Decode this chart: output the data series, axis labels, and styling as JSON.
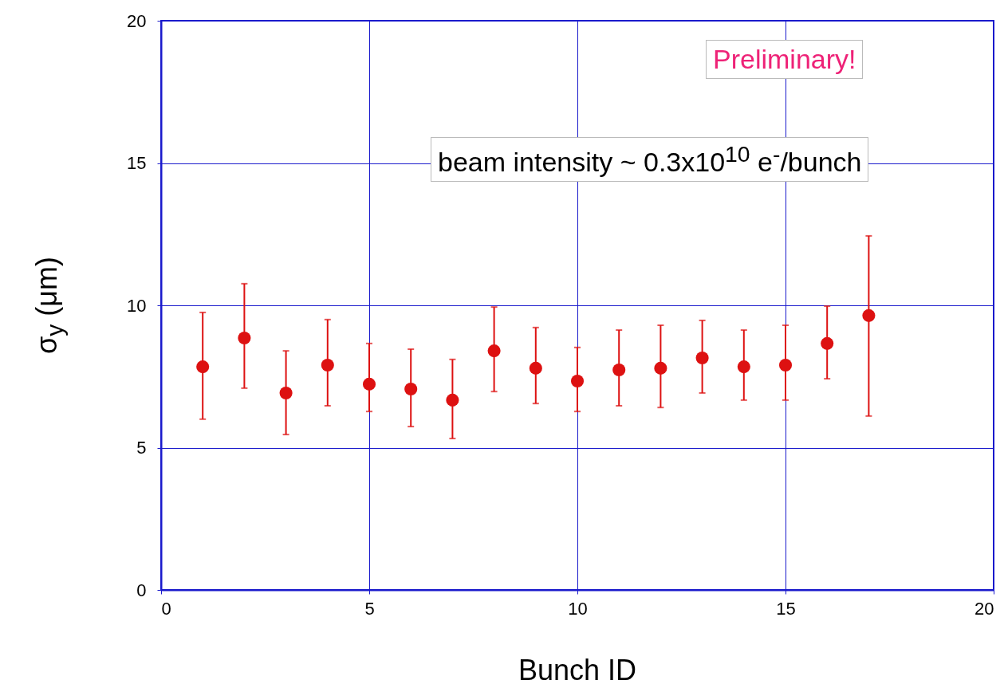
{
  "chart_data": {
    "type": "scatter",
    "xlabel": "Bunch ID",
    "ylabel": "σ$_{y}$ (μm)",
    "x": [
      1,
      2,
      3,
      4,
      5,
      6,
      7,
      8,
      9,
      10,
      11,
      12,
      13,
      14,
      15,
      16,
      17
    ],
    "values": [
      7.84,
      8.85,
      6.92,
      7.9,
      7.23,
      7.06,
      6.67,
      8.4,
      7.79,
      7.34,
      7.73,
      7.79,
      8.15,
      7.84,
      7.9,
      8.66,
      9.64
    ],
    "errors": [
      [
        6.0,
        9.75
      ],
      [
        7.09,
        10.76
      ],
      [
        5.46,
        8.4
      ],
      [
        6.47,
        9.5
      ],
      [
        6.27,
        8.66
      ],
      [
        5.74,
        8.46
      ],
      [
        5.32,
        8.1
      ],
      [
        6.97,
        9.94
      ],
      [
        6.55,
        9.22
      ],
      [
        6.27,
        8.52
      ],
      [
        6.47,
        9.13
      ],
      [
        6.41,
        9.3
      ],
      [
        6.92,
        9.47
      ],
      [
        6.67,
        9.13
      ],
      [
        6.67,
        9.3
      ],
      [
        7.42,
        9.97
      ],
      [
        6.11,
        12.44
      ]
    ],
    "color": "#dd1111",
    "marker": "circle",
    "xlim": [
      0,
      20
    ],
    "xticks": [
      0,
      5,
      10,
      15,
      20
    ],
    "ylim": [
      0,
      20
    ],
    "yticks": [
      0,
      5,
      10,
      15,
      20
    ],
    "grid": true,
    "annotations": [
      "Preliminary!",
      "beam intensity ~ 0.3x10$^{10}$ e$^{-}$/bunch"
    ]
  }
}
